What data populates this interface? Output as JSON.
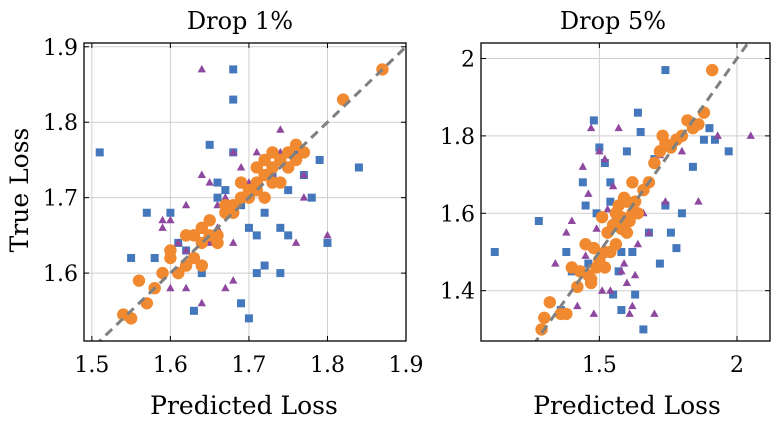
{
  "ylabel_shared": "True Loss",
  "colors": {
    "square": "#4477bb",
    "triangle": "#8e48a0",
    "circle": "#f0892f",
    "diagonal": "#808080"
  },
  "chart_data": [
    {
      "type": "scatter",
      "title": "Drop 1%",
      "xlabel": "Predicted Loss",
      "ylabel": "True Loss",
      "xlim": [
        1.49,
        1.9
      ],
      "ylim": [
        1.51,
        1.905
      ],
      "xticks": [
        {
          "v": 1.5,
          "label": "1.5"
        },
        {
          "v": 1.6,
          "label": "1.6"
        },
        {
          "v": 1.7,
          "label": "1.7"
        },
        {
          "v": 1.8,
          "label": "1.8"
        },
        {
          "v": 1.9,
          "label": "1.9"
        }
      ],
      "yticks": [
        {
          "v": 1.6,
          "label": "1.6"
        },
        {
          "v": 1.7,
          "label": "1.7"
        },
        {
          "v": 1.8,
          "label": "1.8"
        },
        {
          "v": 1.9,
          "label": "1.9"
        }
      ],
      "grid": true,
      "diagonal": true,
      "series": [
        {
          "marker": "square",
          "x": [
            1.51,
            1.55,
            1.58,
            1.57,
            1.6,
            1.61,
            1.62,
            1.63,
            1.64,
            1.65,
            1.66,
            1.67,
            1.68,
            1.68,
            1.68,
            1.69,
            1.69,
            1.7,
            1.71,
            1.71,
            1.72,
            1.72,
            1.73,
            1.74,
            1.74,
            1.75,
            1.76,
            1.77,
            1.78,
            1.79,
            1.8,
            1.84,
            1.63,
            1.69,
            1.66,
            1.7,
            1.72,
            1.75,
            1.62,
            1.67
          ],
          "y": [
            1.76,
            1.62,
            1.62,
            1.68,
            1.68,
            1.64,
            1.63,
            1.55,
            1.6,
            1.77,
            1.7,
            1.71,
            1.87,
            1.83,
            1.76,
            1.69,
            1.56,
            1.54,
            1.65,
            1.6,
            1.61,
            1.7,
            1.73,
            1.6,
            1.66,
            1.65,
            1.76,
            1.73,
            1.7,
            1.75,
            1.64,
            1.74,
            1.65,
            1.7,
            1.72,
            1.66,
            1.68,
            1.71,
            1.65,
            1.68
          ]
        },
        {
          "marker": "triangle",
          "x": [
            1.59,
            1.59,
            1.6,
            1.61,
            1.62,
            1.62,
            1.64,
            1.64,
            1.65,
            1.66,
            1.67,
            1.67,
            1.68,
            1.68,
            1.69,
            1.69,
            1.7,
            1.71,
            1.72,
            1.73,
            1.74,
            1.76,
            1.76,
            1.77,
            1.77,
            1.8,
            1.6,
            1.62,
            1.65,
            1.7,
            1.74,
            1.64,
            1.68,
            1.66
          ],
          "y": [
            1.67,
            1.66,
            1.67,
            1.64,
            1.58,
            1.63,
            1.87,
            1.73,
            1.64,
            1.66,
            1.58,
            1.7,
            1.76,
            1.64,
            1.72,
            1.74,
            1.72,
            1.76,
            1.73,
            1.73,
            1.79,
            1.64,
            1.77,
            1.7,
            1.73,
            1.65,
            1.58,
            1.69,
            1.72,
            1.71,
            1.76,
            1.56,
            1.59,
            1.69
          ]
        },
        {
          "marker": "circle",
          "x": [
            1.54,
            1.55,
            1.56,
            1.57,
            1.58,
            1.59,
            1.6,
            1.6,
            1.61,
            1.62,
            1.62,
            1.63,
            1.63,
            1.64,
            1.64,
            1.65,
            1.65,
            1.66,
            1.67,
            1.67,
            1.68,
            1.68,
            1.69,
            1.69,
            1.7,
            1.7,
            1.71,
            1.71,
            1.72,
            1.72,
            1.72,
            1.73,
            1.73,
            1.74,
            1.74,
            1.75,
            1.75,
            1.76,
            1.76,
            1.77,
            1.82,
            1.87,
            1.64,
            1.66,
            1.71,
            1.73
          ],
          "y": [
            1.545,
            1.54,
            1.59,
            1.56,
            1.58,
            1.6,
            1.62,
            1.63,
            1.6,
            1.61,
            1.65,
            1.62,
            1.65,
            1.64,
            1.66,
            1.65,
            1.67,
            1.65,
            1.69,
            1.68,
            1.69,
            1.68,
            1.7,
            1.72,
            1.71,
            1.7,
            1.72,
            1.74,
            1.7,
            1.75,
            1.73,
            1.74,
            1.76,
            1.75,
            1.72,
            1.76,
            1.74,
            1.77,
            1.75,
            1.76,
            1.83,
            1.87,
            1.61,
            1.64,
            1.71,
            1.72
          ]
        }
      ]
    },
    {
      "type": "scatter",
      "title": "Drop 5%",
      "xlabel": "Predicted Loss",
      "ylabel": "",
      "xlim": [
        1.07,
        2.12
      ],
      "ylim": [
        1.27,
        2.04
      ],
      "xticks": [
        {
          "v": 1.5,
          "label": "1.5"
        },
        {
          "v": 2.0,
          "label": "2"
        }
      ],
      "yticks": [
        {
          "v": 1.4,
          "label": "1.4"
        },
        {
          "v": 1.6,
          "label": "1.6"
        },
        {
          "v": 1.8,
          "label": "1.8"
        },
        {
          "v": 2.0,
          "label": "2"
        }
      ],
      "grid": true,
      "diagonal": true,
      "series": [
        {
          "marker": "square",
          "x": [
            1.12,
            1.28,
            1.36,
            1.38,
            1.4,
            1.44,
            1.45,
            1.46,
            1.48,
            1.5,
            1.5,
            1.52,
            1.54,
            1.55,
            1.56,
            1.57,
            1.58,
            1.6,
            1.62,
            1.64,
            1.65,
            1.66,
            1.68,
            1.7,
            1.72,
            1.74,
            1.76,
            1.78,
            1.8,
            1.84,
            1.88,
            1.9,
            1.92,
            1.97,
            1.74,
            1.58,
            1.63,
            1.49,
            1.54
          ],
          "y": [
            1.5,
            1.58,
            1.35,
            1.5,
            1.45,
            1.68,
            1.62,
            1.47,
            1.84,
            1.77,
            1.48,
            1.73,
            1.63,
            1.39,
            1.58,
            1.45,
            1.35,
            1.76,
            1.5,
            1.86,
            1.81,
            1.3,
            1.55,
            1.74,
            1.47,
            1.97,
            1.55,
            1.51,
            1.6,
            1.72,
            1.79,
            1.82,
            1.79,
            1.76,
            1.62,
            1.5,
            1.39,
            1.6,
            1.68
          ]
        },
        {
          "marker": "triangle",
          "x": [
            1.3,
            1.34,
            1.38,
            1.4,
            1.42,
            1.44,
            1.46,
            1.47,
            1.48,
            1.49,
            1.5,
            1.51,
            1.52,
            1.53,
            1.54,
            1.55,
            1.57,
            1.58,
            1.59,
            1.61,
            1.62,
            1.63,
            1.64,
            1.66,
            1.68,
            1.7,
            1.72,
            1.74,
            1.8,
            1.86,
            1.93,
            2.05,
            1.45,
            1.6,
            1.55
          ],
          "y": [
            1.33,
            1.47,
            1.55,
            1.58,
            1.36,
            1.72,
            1.65,
            1.82,
            1.34,
            1.56,
            1.76,
            1.4,
            1.74,
            1.61,
            1.4,
            1.56,
            1.82,
            1.45,
            1.47,
            1.34,
            1.36,
            1.44,
            1.52,
            1.6,
            1.55,
            1.34,
            1.75,
            1.63,
            1.76,
            1.63,
            1.8,
            1.8,
            1.49,
            1.42,
            1.67
          ]
        },
        {
          "marker": "circle",
          "x": [
            1.29,
            1.3,
            1.32,
            1.36,
            1.38,
            1.4,
            1.42,
            1.43,
            1.45,
            1.46,
            1.47,
            1.48,
            1.49,
            1.5,
            1.51,
            1.52,
            1.53,
            1.54,
            1.55,
            1.56,
            1.57,
            1.58,
            1.59,
            1.6,
            1.61,
            1.62,
            1.63,
            1.64,
            1.66,
            1.68,
            1.7,
            1.72,
            1.73,
            1.74,
            1.76,
            1.78,
            1.8,
            1.82,
            1.84,
            1.86,
            1.88,
            1.91,
            1.56,
            1.58,
            1.62,
            1.52,
            1.47,
            1.6
          ],
          "y": [
            1.3,
            1.33,
            1.37,
            1.34,
            1.34,
            1.46,
            1.41,
            1.45,
            1.52,
            1.44,
            1.42,
            1.51,
            1.46,
            1.48,
            1.59,
            1.5,
            1.55,
            1.5,
            1.57,
            1.6,
            1.62,
            1.59,
            1.64,
            1.63,
            1.58,
            1.68,
            1.63,
            1.6,
            1.66,
            1.68,
            1.73,
            1.76,
            1.8,
            1.78,
            1.77,
            1.79,
            1.8,
            1.84,
            1.82,
            1.83,
            1.86,
            1.97,
            1.52,
            1.56,
            1.6,
            1.46,
            1.43,
            1.55
          ]
        }
      ]
    }
  ]
}
